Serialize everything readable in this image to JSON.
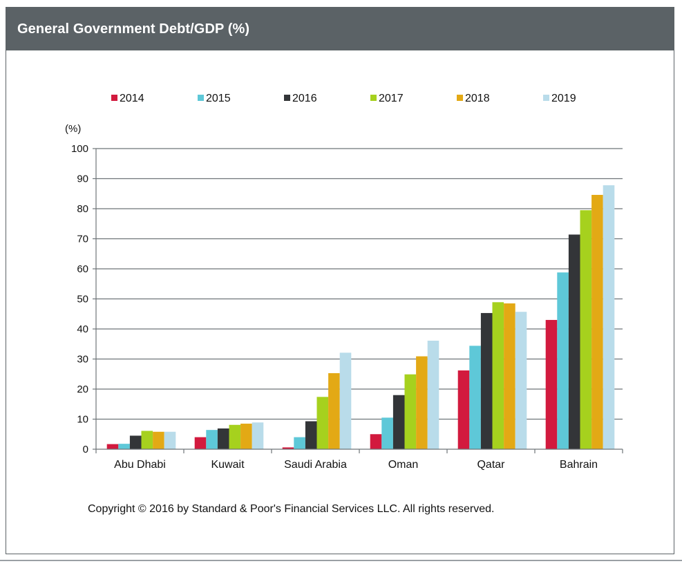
{
  "header": {
    "title": "General Government Debt/GDP (%)"
  },
  "footer": {
    "copyright": "Copyright © 2016 by Standard & Poor's Financial Services LLC. All rights reserved."
  },
  "chart_data": {
    "type": "bar",
    "title": "General Government Debt/GDP (%)",
    "ylabel": "(%)",
    "ylim": [
      0,
      100
    ],
    "yticks": [
      0,
      10,
      20,
      30,
      40,
      50,
      60,
      70,
      80,
      90,
      100
    ],
    "grid": true,
    "legend_position": "top",
    "categories": [
      "Abu Dhabi",
      "Kuwait",
      "Saudi Arabia",
      "Oman",
      "Qatar",
      "Bahrain"
    ],
    "series": [
      {
        "name": "2014",
        "color": "#d21a3e",
        "values": [
          1.7,
          4.0,
          0.6,
          5.0,
          26.2,
          43.0
        ]
      },
      {
        "name": "2015",
        "color": "#5ec8d8",
        "values": [
          1.8,
          6.4,
          4.0,
          10.5,
          34.4,
          58.8
        ]
      },
      {
        "name": "2016",
        "color": "#333538",
        "values": [
          4.5,
          6.9,
          9.3,
          18.0,
          45.3,
          71.4
        ]
      },
      {
        "name": "2017",
        "color": "#a6d11e",
        "values": [
          6.1,
          8.1,
          17.4,
          24.9,
          48.9,
          79.5
        ]
      },
      {
        "name": "2018",
        "color": "#e3a915",
        "values": [
          5.8,
          8.5,
          25.3,
          30.9,
          48.5,
          84.6
        ]
      },
      {
        "name": "2019",
        "color": "#b9dcea",
        "values": [
          5.8,
          8.9,
          32.1,
          36.1,
          45.7,
          87.8
        ]
      }
    ]
  }
}
